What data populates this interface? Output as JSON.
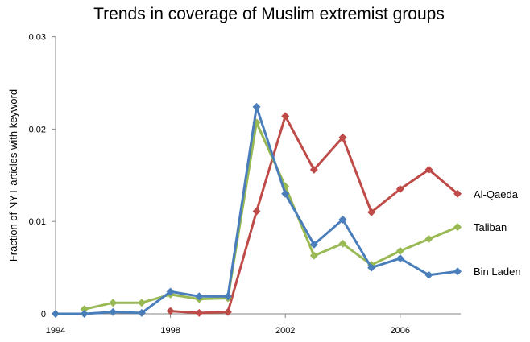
{
  "chart_data": {
    "type": "line",
    "title": "Trends in coverage of Muslim extremist groups",
    "xlabel": "",
    "ylabel": "Fraction of NYT articles with keyword",
    "xlim": [
      1994,
      2008
    ],
    "ylim": [
      0,
      0.03
    ],
    "x_ticks": [
      "1994",
      "1998",
      "2002",
      "2006"
    ],
    "y_ticks": [
      "0",
      "0.01",
      "0.02",
      "0.03"
    ],
    "grid": false,
    "legend_position": "inline-right",
    "series": [
      {
        "name": "Al-Qaeda",
        "color": "#be4b48",
        "x": [
          1998,
          1999,
          2000,
          2001,
          2002,
          2003,
          2004,
          2005,
          2006,
          2007,
          2008
        ],
        "values": [
          0.0003,
          0.0001,
          0.0002,
          0.0111,
          0.0214,
          0.0156,
          0.0191,
          0.011,
          0.0135,
          0.0156,
          0.013
        ]
      },
      {
        "name": "Taliban",
        "color": "#98b954",
        "x": [
          1995,
          1996,
          1997,
          1998,
          1999,
          2000,
          2001,
          2002,
          2003,
          2004,
          2005,
          2006,
          2007,
          2008
        ],
        "values": [
          0.0005,
          0.0012,
          0.0012,
          0.0021,
          0.0016,
          0.0017,
          0.0207,
          0.0138,
          0.0063,
          0.0076,
          0.0053,
          0.0068,
          0.0081,
          0.0094
        ]
      },
      {
        "name": "Bin Laden",
        "color": "#4a7ebb",
        "x": [
          1994,
          1995,
          1996,
          1997,
          1998,
          1999,
          2000,
          2001,
          2002,
          2003,
          2004,
          2005,
          2006,
          2007,
          2008
        ],
        "values": [
          0.0,
          0.0,
          0.0002,
          0.0001,
          0.0024,
          0.0019,
          0.0019,
          0.0224,
          0.013,
          0.0075,
          0.0102,
          0.005,
          0.006,
          0.0042,
          0.0046
        ]
      }
    ]
  }
}
